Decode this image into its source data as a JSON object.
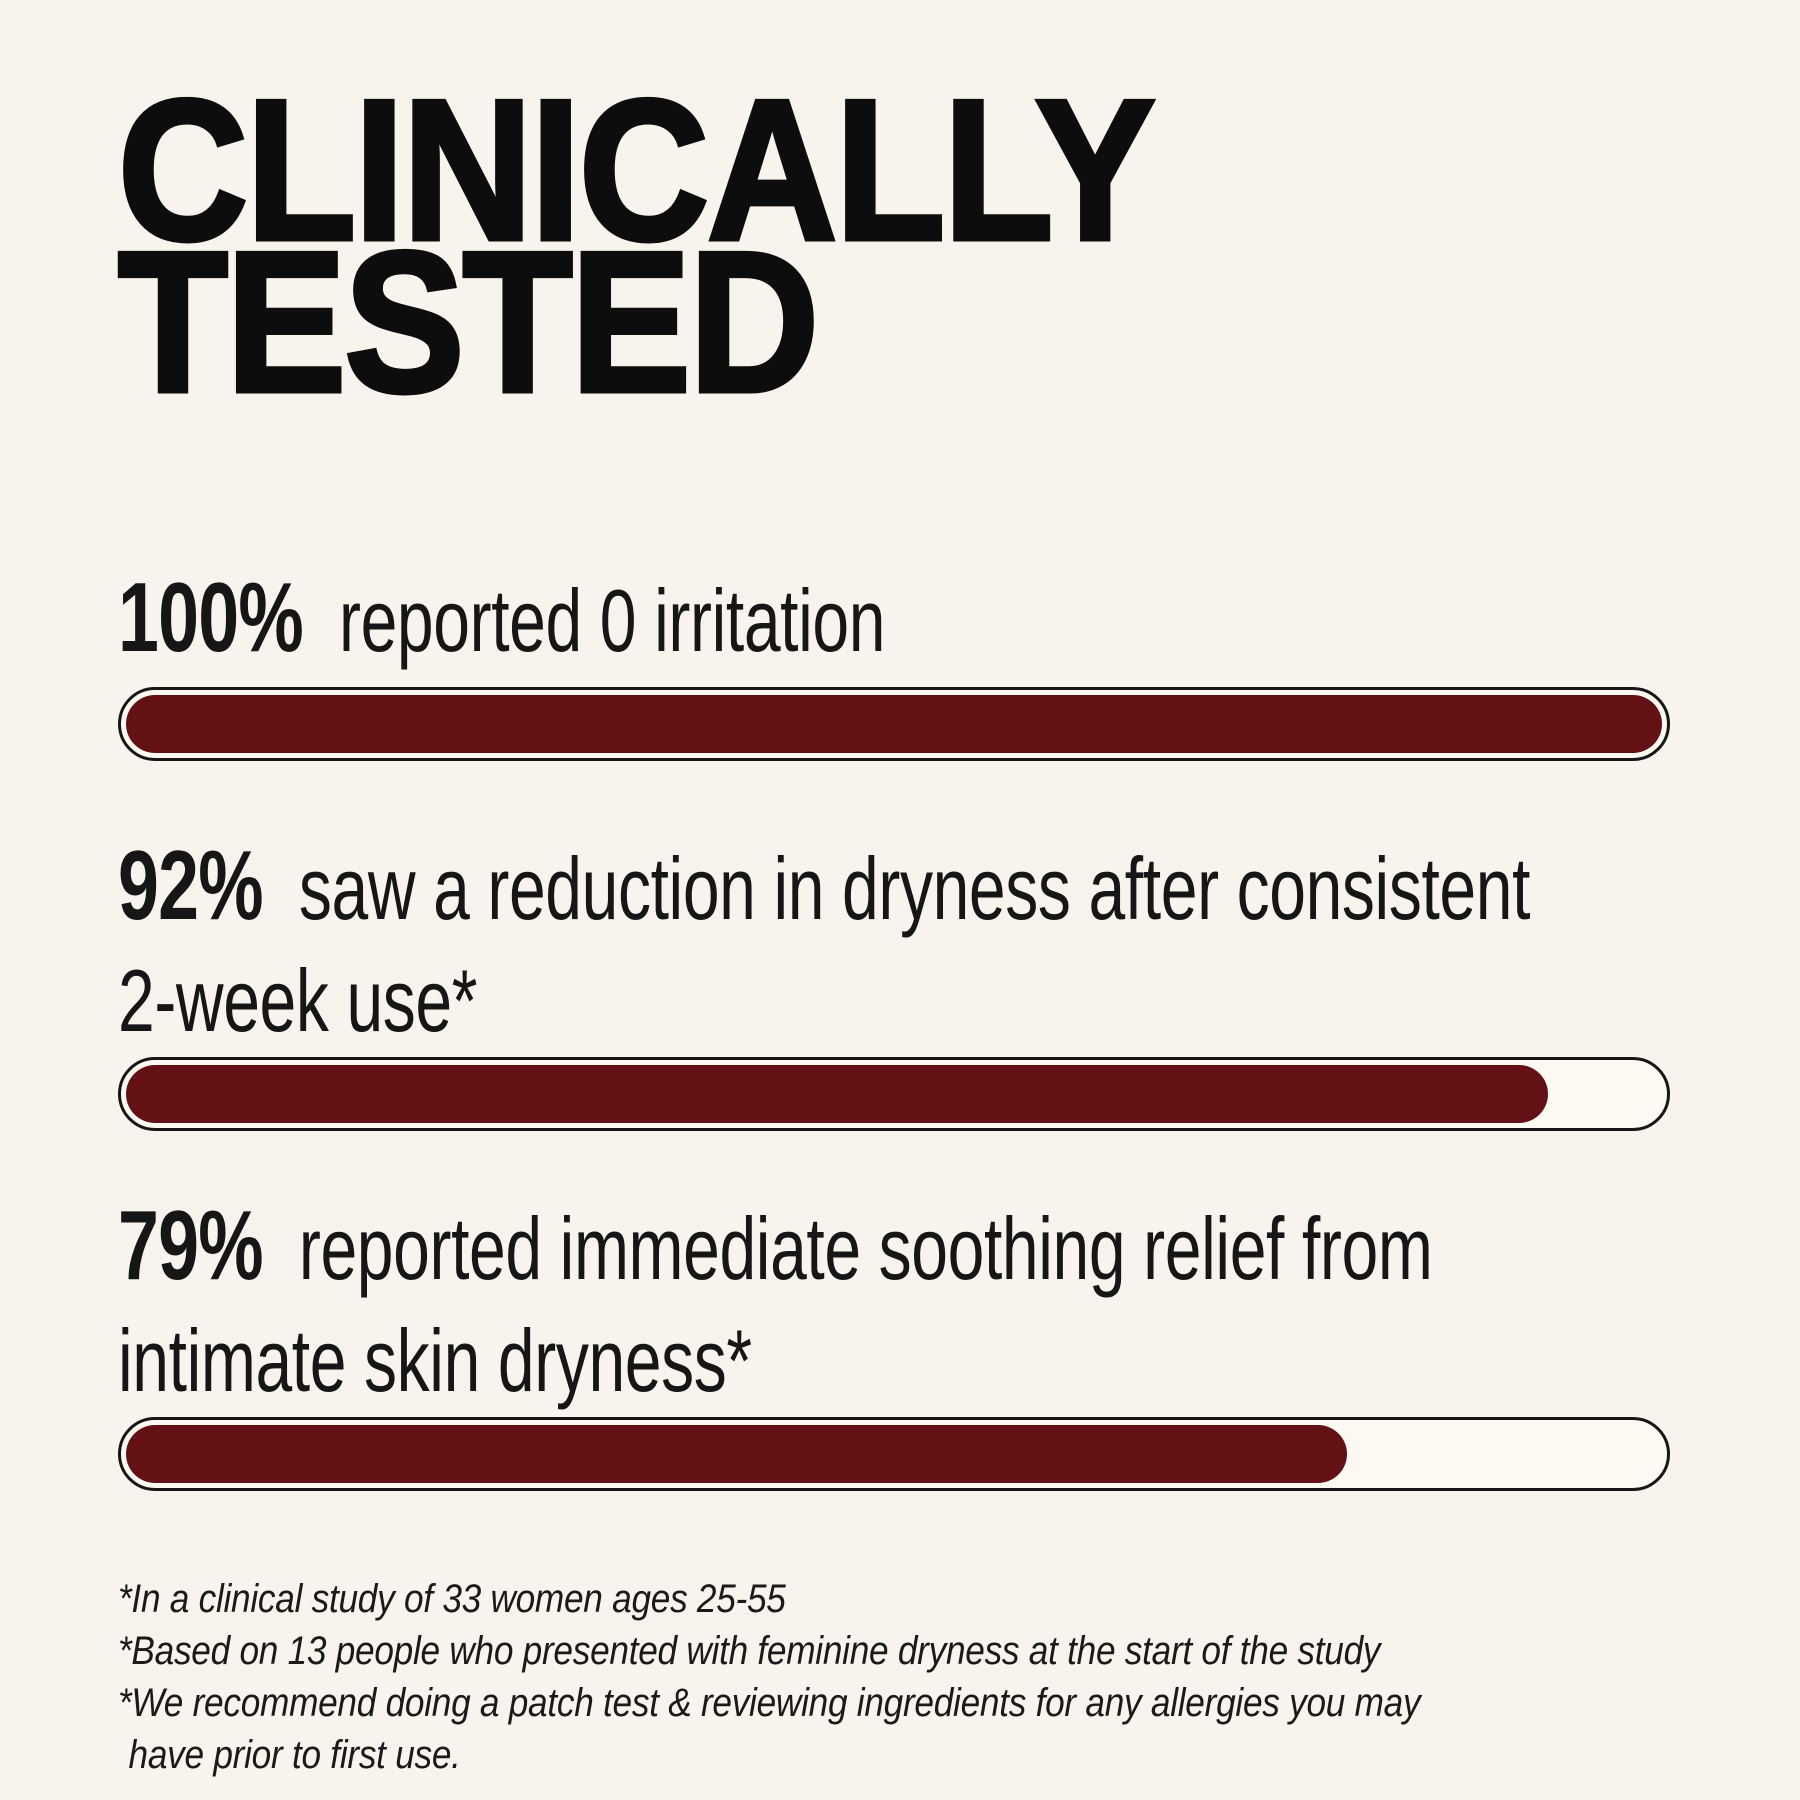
{
  "title": {
    "text": "CLINICALLY TESTED",
    "lines": [
      "CLINICALLY",
      "TESTED"
    ]
  },
  "stats": [
    {
      "value": "100%",
      "description": "reported 0 irritation",
      "lines": [
        "reported 0 irritation"
      ],
      "percent": 100
    },
    {
      "value": "92%",
      "description": "saw a reduction in dryness after consistent 2-week use*",
      "lines": [
        "saw a reduction in dryness after consistent",
        "2-week use*"
      ],
      "percent": 92
    },
    {
      "value": "79%",
      "description": "reported immediate soothing relief from intimate skin dryness*",
      "lines": [
        "reported immediate soothing relief from",
        "intimate skin dryness*"
      ],
      "percent": 79
    }
  ],
  "footnotes": {
    "lines": [
      "*In a clinical study of 33 women ages 25-55",
      "*Based on 13 people who presented with feminine dryness at the start of the study",
      "*We recommend doing a patch test & reviewing ingredients for any allergies you may",
      "have prior to first use."
    ]
  },
  "colors": {
    "background": "#f8f3ec",
    "text": "#141414",
    "bar_fill": "#641115",
    "bar_track": "#fcf9f3",
    "bar_border": "#161616"
  },
  "chart_data": {
    "type": "bar",
    "orientation": "horizontal",
    "title": "CLINICALLY TESTED",
    "categories": [
      "reported 0 irritation",
      "saw a reduction in dryness after consistent 2-week use*",
      "reported immediate soothing relief from intimate skin dryness*"
    ],
    "values": [
      100,
      92,
      79
    ],
    "value_labels": [
      "100%",
      "92%",
      "79%"
    ],
    "xlim": [
      0,
      100
    ],
    "value_format": "percent",
    "bar_color": "#641115",
    "grid": false,
    "legend": false,
    "annotations": [
      "*In a clinical study of 33 women ages 25-55",
      "*Based on 13 people who presented with feminine dryness at the start of the study",
      "*We recommend doing a patch test & reviewing ingredients for any allergies you may have prior to first use."
    ]
  }
}
